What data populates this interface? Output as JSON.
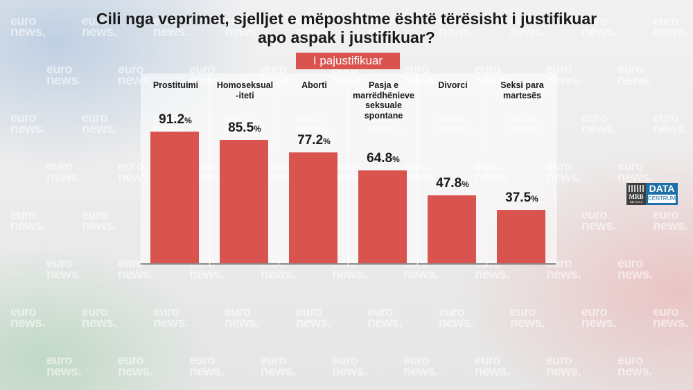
{
  "header": {
    "title": "Cili nga veprimet, sjelljet e mëposhtme është tërësisht i justifikuar apo aspak i justifikuar?",
    "badge": "I pajustifikuar"
  },
  "chart_data": {
    "type": "bar",
    "title": "Cili nga veprimet, sjelljet e mëposhtme është tërësisht i justifikuar apo aspak i justifikuar?",
    "subtitle": "I pajustifikuar",
    "categories": [
      "Prostituimi",
      "Homoseksual -iteti",
      "Aborti",
      "Pasja e marrëdhënieve seksuale spontane",
      "Divorci",
      "Seksi para martesës"
    ],
    "category_lines": [
      [
        "Prostituimi"
      ],
      [
        "Homoseksual",
        "-iteti"
      ],
      [
        "Aborti"
      ],
      [
        "Pasja e",
        "marrëdhënieve",
        "seksuale",
        "spontane"
      ],
      [
        "Divorci"
      ],
      [
        "Seksi para",
        "martesës"
      ]
    ],
    "values": [
      91.2,
      85.5,
      77.2,
      64.8,
      47.8,
      37.5
    ],
    "value_labels": [
      "91.2",
      "85.5",
      "77.2",
      "64.8",
      "47.8",
      "37.5"
    ],
    "unit": "%",
    "ylim": [
      0,
      100
    ],
    "grid": false,
    "legend": "none",
    "bar_color": "#d9534f"
  },
  "logo": {
    "left_text": "MRB",
    "left_subtext": "BELASS.S",
    "right_text": "DATA",
    "right_subtext": "CENTRUM"
  },
  "watermark": {
    "line1": "euro",
    "line2": "news."
  },
  "colors": {
    "accent": "#d9534f",
    "title": "#1a1a1a",
    "logo_blue": "#1d6fa8"
  }
}
